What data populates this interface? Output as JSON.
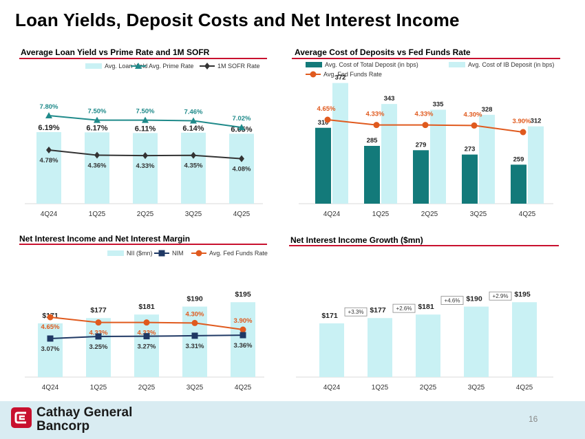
{
  "page": {
    "title": "Loan Yields, Deposit Costs and Net Interest Income",
    "page_number": "16",
    "company_line1": "Cathay General",
    "company_line2": "Bancorp"
  },
  "colors": {
    "light_blue": "#c9f1f4",
    "teal": "#137a7a",
    "teal_line": "#1f8a8a",
    "dark_line": "#333333",
    "orange": "#e05a1e",
    "navy": "#1f3864",
    "red_rule": "#c8102e"
  },
  "chart_data": [
    {
      "id": "loan-yield",
      "type": "bar",
      "title": "Average Loan Yield vs Prime Rate and 1M SOFR",
      "categories": [
        "4Q24",
        "1Q25",
        "2Q25",
        "3Q25",
        "4Q25"
      ],
      "ylim": [
        0,
        9
      ],
      "series": [
        {
          "name": "Avg. Loan Yield",
          "kind": "bar",
          "values": [
            6.19,
            6.17,
            6.11,
            6.14,
            6.05
          ],
          "labels": [
            "6.19%",
            "6.17%",
            "6.11%",
            "6.14%",
            "6.05%"
          ]
        },
        {
          "name": "Avg. Prime Rate",
          "kind": "line",
          "values": [
            7.8,
            7.5,
            7.5,
            7.46,
            7.02
          ],
          "labels": [
            "7.80%",
            "7.50%",
            "7.50%",
            "7.46%",
            "7.02%"
          ]
        },
        {
          "name": "1M SOFR Rate",
          "kind": "line",
          "values": [
            4.78,
            4.36,
            4.33,
            4.35,
            4.08
          ],
          "labels": [
            "4.78%",
            "4.36%",
            "4.33%",
            "4.35%",
            "4.08%"
          ]
        }
      ]
    },
    {
      "id": "deposit-cost",
      "type": "bar",
      "title": "Average Cost of Deposits vs Fed Funds Rate",
      "categories": [
        "4Q24",
        "1Q25",
        "2Q25",
        "3Q25",
        "4Q25"
      ],
      "ylim": [
        0,
        500
      ],
      "series": [
        {
          "name": "Avg. Cost of Total Deposit (in bps)",
          "kind": "bar",
          "values": [
            310,
            285,
            279,
            273,
            259
          ],
          "labels": [
            "310",
            "285",
            "279",
            "273",
            "259"
          ]
        },
        {
          "name": "Avg. Cost of IB Deposit (in bps)",
          "kind": "bar",
          "values": [
            372,
            343,
            335,
            328,
            312
          ],
          "labels": [
            "372",
            "343",
            "335",
            "328",
            "312"
          ]
        },
        {
          "name": "Avg. Fed Funds Rate",
          "kind": "line",
          "values": [
            4.65,
            4.33,
            4.33,
            4.3,
            3.9
          ],
          "labels": [
            "4.65%",
            "4.33%",
            "4.33%",
            "4.30%",
            "3.90%"
          ]
        }
      ]
    },
    {
      "id": "nii-nim",
      "type": "bar",
      "title": "Net Interest Income and Net Interest Margin",
      "categories": [
        "4Q24",
        "1Q25",
        "2Q25",
        "3Q25",
        "4Q25"
      ],
      "ylim": [
        100,
        200
      ],
      "series": [
        {
          "name": "NII ($mn)",
          "kind": "bar",
          "values": [
            171,
            177,
            181,
            190,
            195
          ],
          "labels": [
            "$171",
            "$177",
            "$181",
            "$190",
            "$195"
          ]
        },
        {
          "name": "NIM",
          "kind": "line",
          "values": [
            3.07,
            3.25,
            3.27,
            3.31,
            3.36
          ],
          "labels": [
            "3.07%",
            "3.25%",
            "3.27%",
            "3.31%",
            "3.36%"
          ]
        },
        {
          "name": "Avg. Fed Funds Rate",
          "kind": "line",
          "values": [
            4.65,
            4.33,
            4.33,
            4.3,
            3.9
          ],
          "labels": [
            "4.65%",
            "4.33%",
            "4.33%",
            "4.30%",
            "3.90%"
          ]
        }
      ]
    },
    {
      "id": "nii-growth",
      "type": "bar",
      "title": "Net Interest Income Growth ($mn)",
      "categories": [
        "4Q24",
        "1Q25",
        "2Q25",
        "3Q25",
        "4Q25"
      ],
      "ylim": [
        0,
        200
      ],
      "series": [
        {
          "name": "NII ($mn)",
          "kind": "bar",
          "values": [
            171,
            177,
            181,
            190,
            195
          ],
          "labels": [
            "$171",
            "$177",
            "$181",
            "$190",
            "$195"
          ]
        }
      ],
      "growth_labels": [
        "+3.3%",
        "+2.6%",
        "+4.6%",
        "+2.9%"
      ]
    }
  ]
}
